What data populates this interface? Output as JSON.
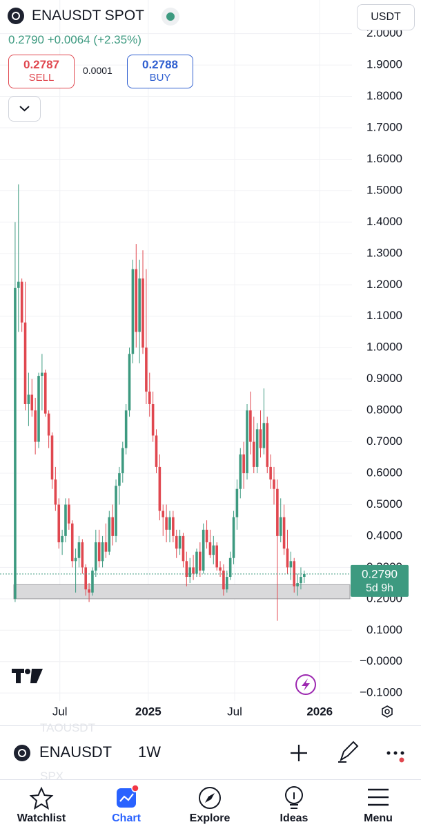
{
  "header": {
    "symbol": "ENAUSDT SPOT",
    "currency": "USDT",
    "last": "0.2790",
    "change": "+0.0064",
    "change_pct": "(+2.35%)",
    "sell_price": "0.2787",
    "sell_label": "SELL",
    "spread": "0.0001",
    "buy_price": "0.2788",
    "buy_label": "BUY"
  },
  "chart_data": {
    "type": "candlestick",
    "candles": [
      [
        0.2,
        1.4,
        0.19,
        1.19
      ],
      [
        1.19,
        1.52,
        1.05,
        1.21
      ],
      [
        1.21,
        1.22,
        1.05,
        1.08
      ],
      [
        1.08,
        1.21,
        0.8,
        0.82
      ],
      [
        0.82,
        0.92,
        0.75,
        0.85
      ],
      [
        0.85,
        0.9,
        0.78,
        0.8
      ],
      [
        0.8,
        0.84,
        0.66,
        0.7
      ],
      [
        0.7,
        0.92,
        0.68,
        0.91
      ],
      [
        0.91,
        0.98,
        0.8,
        0.92
      ],
      [
        0.92,
        0.93,
        0.78,
        0.79
      ],
      [
        0.79,
        0.8,
        0.68,
        0.72
      ],
      [
        0.72,
        0.73,
        0.55,
        0.58
      ],
      [
        0.58,
        0.62,
        0.48,
        0.5
      ],
      [
        0.5,
        0.52,
        0.36,
        0.38
      ],
      [
        0.38,
        0.42,
        0.34,
        0.4
      ],
      [
        0.4,
        0.52,
        0.38,
        0.5
      ],
      [
        0.5,
        0.52,
        0.42,
        0.44
      ],
      [
        0.44,
        0.45,
        0.3,
        0.32
      ],
      [
        0.32,
        0.36,
        0.22,
        0.33
      ],
      [
        0.33,
        0.4,
        0.3,
        0.38
      ],
      [
        0.38,
        0.39,
        0.28,
        0.3
      ],
      [
        0.3,
        0.31,
        0.21,
        0.23
      ],
      [
        0.23,
        0.25,
        0.19,
        0.22
      ],
      [
        0.22,
        0.3,
        0.21,
        0.29
      ],
      [
        0.29,
        0.42,
        0.27,
        0.38
      ],
      [
        0.38,
        0.42,
        0.3,
        0.32
      ],
      [
        0.32,
        0.4,
        0.3,
        0.38
      ],
      [
        0.38,
        0.44,
        0.33,
        0.35
      ],
      [
        0.35,
        0.48,
        0.34,
        0.46
      ],
      [
        0.46,
        0.5,
        0.37,
        0.4
      ],
      [
        0.4,
        0.58,
        0.38,
        0.56
      ],
      [
        0.56,
        0.62,
        0.5,
        0.6
      ],
      [
        0.6,
        0.7,
        0.57,
        0.68
      ],
      [
        0.68,
        0.82,
        0.66,
        0.8
      ],
      [
        0.8,
        1.0,
        0.78,
        0.98
      ],
      [
        0.98,
        1.28,
        0.95,
        1.25
      ],
      [
        1.25,
        1.33,
        1.0,
        1.05
      ],
      [
        1.05,
        1.28,
        0.95,
        1.22
      ],
      [
        1.22,
        1.31,
        0.98,
        1.0
      ],
      [
        1.0,
        1.25,
        0.82,
        0.86
      ],
      [
        0.86,
        0.92,
        0.78,
        0.82
      ],
      [
        0.82,
        0.86,
        0.7,
        0.72
      ],
      [
        0.72,
        0.74,
        0.6,
        0.62
      ],
      [
        0.62,
        0.66,
        0.45,
        0.48
      ],
      [
        0.48,
        0.5,
        0.4,
        0.46
      ],
      [
        0.46,
        0.5,
        0.38,
        0.42
      ],
      [
        0.42,
        0.48,
        0.38,
        0.46
      ],
      [
        0.46,
        0.48,
        0.38,
        0.4
      ],
      [
        0.4,
        0.42,
        0.33,
        0.36
      ],
      [
        0.36,
        0.42,
        0.34,
        0.4
      ],
      [
        0.4,
        0.41,
        0.3,
        0.32
      ],
      [
        0.32,
        0.35,
        0.24,
        0.27
      ],
      [
        0.27,
        0.33,
        0.25,
        0.3
      ],
      [
        0.3,
        0.34,
        0.26,
        0.28
      ],
      [
        0.28,
        0.36,
        0.27,
        0.35
      ],
      [
        0.35,
        0.38,
        0.27,
        0.29
      ],
      [
        0.29,
        0.44,
        0.28,
        0.42
      ],
      [
        0.42,
        0.45,
        0.36,
        0.38
      ],
      [
        0.38,
        0.42,
        0.33,
        0.34
      ],
      [
        0.34,
        0.4,
        0.31,
        0.37
      ],
      [
        0.37,
        0.38,
        0.29,
        0.3
      ],
      [
        0.3,
        0.32,
        0.27,
        0.29
      ],
      [
        0.29,
        0.31,
        0.21,
        0.23
      ],
      [
        0.23,
        0.29,
        0.22,
        0.27
      ],
      [
        0.27,
        0.35,
        0.26,
        0.33
      ],
      [
        0.33,
        0.48,
        0.31,
        0.46
      ],
      [
        0.46,
        0.58,
        0.42,
        0.55
      ],
      [
        0.55,
        0.68,
        0.52,
        0.66
      ],
      [
        0.66,
        0.7,
        0.55,
        0.6
      ],
      [
        0.6,
        0.82,
        0.58,
        0.8
      ],
      [
        0.8,
        0.86,
        0.66,
        0.7
      ],
      [
        0.7,
        0.78,
        0.6,
        0.62
      ],
      [
        0.62,
        0.76,
        0.6,
        0.74
      ],
      [
        0.74,
        0.8,
        0.65,
        0.68
      ],
      [
        0.68,
        0.87,
        0.66,
        0.76
      ],
      [
        0.76,
        0.78,
        0.6,
        0.62
      ],
      [
        0.62,
        0.66,
        0.55,
        0.58
      ],
      [
        0.58,
        0.62,
        0.5,
        0.55
      ],
      [
        0.55,
        0.58,
        0.13,
        0.4
      ],
      [
        0.4,
        0.52,
        0.38,
        0.46
      ],
      [
        0.46,
        0.5,
        0.34,
        0.36
      ],
      [
        0.36,
        0.42,
        0.28,
        0.3
      ],
      [
        0.3,
        0.35,
        0.26,
        0.32
      ],
      [
        0.32,
        0.33,
        0.22,
        0.24
      ],
      [
        0.24,
        0.28,
        0.21,
        0.25
      ],
      [
        0.25,
        0.3,
        0.23,
        0.27
      ],
      [
        0.27,
        0.29,
        0.25,
        0.279
      ]
    ],
    "colors": {
      "up": "#3d9a80",
      "down": "#e0474f"
    },
    "ylim": [
      -0.126,
      2.107
    ],
    "yticks": [
      {
        "value": 2.0,
        "label": "2.0000"
      },
      {
        "value": 1.9,
        "label": "1.9000"
      },
      {
        "value": 1.8,
        "label": "1.8000"
      },
      {
        "value": 1.7,
        "label": "1.7000"
      },
      {
        "value": 1.6,
        "label": "1.6000"
      },
      {
        "value": 1.5,
        "label": "1.5000"
      },
      {
        "value": 1.4,
        "label": "1.4000"
      },
      {
        "value": 1.3,
        "label": "1.3000"
      },
      {
        "value": 1.2,
        "label": "1.2000"
      },
      {
        "value": 1.1,
        "label": "1.1000"
      },
      {
        "value": 1.0,
        "label": "1.0000"
      },
      {
        "value": 0.9,
        "label": "0.9000"
      },
      {
        "value": 0.8,
        "label": "0.8000"
      },
      {
        "value": 0.7,
        "label": "0.7000"
      },
      {
        "value": 0.6,
        "label": "0.6000"
      },
      {
        "value": 0.5,
        "label": "0.5000"
      },
      {
        "value": 0.4,
        "label": "0.4000"
      },
      {
        "value": 0.3,
        "label": "0.3000"
      },
      {
        "value": 0.2,
        "label": "0.2000"
      },
      {
        "value": 0.1,
        "label": "0.1000"
      },
      {
        "value": 0,
        "label": "−0.0000"
      },
      {
        "value": -0.1,
        "label": "−0.1000"
      }
    ],
    "xlim": [
      -4.5,
      100.2
    ],
    "xticks": [
      {
        "value": 13.3,
        "label": "Jul"
      },
      {
        "value": 39.6,
        "label": "2025"
      },
      {
        "value": 65.3,
        "label": "Jul"
      },
      {
        "value": 90.6,
        "label": "2026"
      }
    ],
    "grid": true,
    "last_price": {
      "value": 0.279,
      "label": "0.2790"
    },
    "countdown": "5d 9h",
    "zone": [
      0.2,
      0.245
    ]
  },
  "toolbar": {
    "symbol": "ENAUSDT",
    "interval": "1W",
    "faded": [
      "TAOUSDT",
      "SPX"
    ]
  },
  "tabs": [
    "Watchlist",
    "Chart",
    "Explore",
    "Ideas",
    "Menu"
  ]
}
